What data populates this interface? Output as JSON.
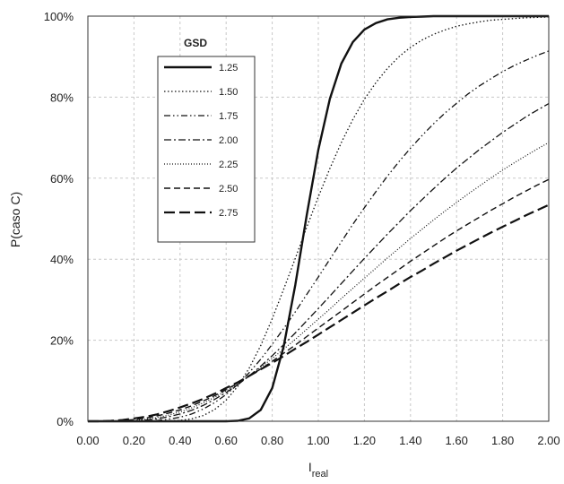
{
  "chart_data": {
    "type": "line",
    "title": "",
    "xlabel_main": "I",
    "xlabel_sub": "real",
    "ylabel": "P(caso C)",
    "xlim": [
      0,
      2
    ],
    "ylim": [
      0,
      100
    ],
    "x_ticks": [
      0,
      0.2,
      0.4,
      0.6,
      0.8,
      1.0,
      1.2,
      1.4,
      1.6,
      1.8,
      2.0
    ],
    "x_tick_labels": [
      "0.00",
      "0.20",
      "0.40",
      "0.60",
      "0.80",
      "1.00",
      "1.20",
      "1.40",
      "1.60",
      "1.80",
      "2.00"
    ],
    "y_ticks": [
      0,
      20,
      40,
      60,
      80,
      100
    ],
    "y_tick_labels": [
      "0%",
      "20%",
      "40%",
      "60%",
      "80%",
      "100%"
    ],
    "grid": true,
    "legend": {
      "title": "GSD",
      "placement": "top-left",
      "entries": [
        "1.25",
        "1.50",
        "1.75",
        "2.00",
        "2.25",
        "2.50",
        "2.75"
      ]
    },
    "x": [
      0.05,
      0.1,
      0.15,
      0.2,
      0.25,
      0.3,
      0.35,
      0.4,
      0.45,
      0.5,
      0.55,
      0.6,
      0.65,
      0.7,
      0.75,
      0.8,
      0.85,
      0.9,
      0.95,
      1.0,
      1.05,
      1.1,
      1.15,
      1.2,
      1.25,
      1.3,
      1.35,
      1.4,
      1.45,
      1.5,
      1.55,
      1.6,
      1.65,
      1.7,
      1.75,
      1.8,
      1.85,
      1.9,
      1.95,
      2.0
    ],
    "series": [
      {
        "name": "1.25",
        "style": "solid-thick",
        "values": [
          0,
          0,
          0,
          0,
          0,
          0,
          0,
          0,
          0,
          0,
          0,
          0,
          0.1,
          0.7,
          2.8,
          8.2,
          18.5,
          33.6,
          50.9,
          67.0,
          79.6,
          88.3,
          93.6,
          96.7,
          98.3,
          99.2,
          99.6,
          99.8,
          99.9,
          100,
          100,
          100,
          100,
          100,
          100,
          100,
          100,
          100,
          100,
          100
        ]
      },
      {
        "name": "1.50",
        "style": "dotted",
        "values": [
          0,
          0,
          0,
          0,
          0,
          0,
          0.1,
          0.2,
          0.6,
          1.4,
          2.9,
          5.2,
          8.6,
          13.1,
          18.7,
          25.3,
          32.6,
          40.2,
          47.9,
          55.4,
          62.4,
          68.8,
          74.5,
          79.5,
          83.6,
          87.1,
          90.0,
          92.3,
          94.1,
          95.5,
          96.6,
          97.5,
          98.1,
          98.6,
          99.0,
          99.2,
          99.4,
          99.6,
          99.7,
          99.8
        ]
      },
      {
        "name": "1.75",
        "style": "dash-dot-dot",
        "values": [
          0,
          0,
          0,
          0,
          0.1,
          0.2,
          0.5,
          1.0,
          1.8,
          3.0,
          4.6,
          6.6,
          9.1,
          12.0,
          15.3,
          19.0,
          22.9,
          27.0,
          31.3,
          35.6,
          40.0,
          44.3,
          48.6,
          52.7,
          56.7,
          60.5,
          64.1,
          67.4,
          70.5,
          73.4,
          76.1,
          78.5,
          80.8,
          82.8,
          84.6,
          86.3,
          87.8,
          89.1,
          90.3,
          91.4
        ]
      },
      {
        "name": "2.00",
        "style": "dash-dot",
        "values": [
          0,
          0,
          0,
          0.1,
          0.3,
          0.6,
          1.1,
          1.8,
          2.7,
          3.9,
          5.4,
          7.1,
          9.0,
          11.2,
          13.6,
          16.2,
          18.9,
          21.8,
          24.8,
          27.8,
          30.9,
          34.0,
          37.1,
          40.2,
          43.2,
          46.2,
          49.1,
          52.0,
          54.7,
          57.4,
          60.0,
          62.5,
          64.8,
          67.1,
          69.2,
          71.3,
          73.2,
          75.1,
          76.8,
          78.4
        ]
      },
      {
        "name": "2.25",
        "style": "dotted-fine",
        "values": [
          0,
          0,
          0.1,
          0.2,
          0.5,
          0.9,
          1.5,
          2.3,
          3.3,
          4.5,
          5.9,
          7.5,
          9.3,
          11.2,
          13.3,
          15.5,
          17.8,
          20.2,
          22.7,
          25.2,
          27.7,
          30.3,
          32.8,
          35.3,
          37.8,
          40.3,
          42.7,
          45.1,
          47.4,
          49.7,
          51.9,
          54.0,
          56.1,
          58.1,
          60.1,
          62.0,
          63.8,
          65.5,
          67.2,
          68.8
        ]
      },
      {
        "name": "2.50",
        "style": "dashed-short",
        "values": [
          0,
          0.1,
          0.2,
          0.4,
          0.8,
          1.3,
          2.0,
          2.8,
          3.8,
          5.0,
          6.3,
          7.8,
          9.4,
          11.1,
          12.9,
          14.8,
          16.8,
          18.8,
          20.9,
          23.0,
          25.1,
          27.2,
          29.3,
          31.4,
          33.5,
          35.5,
          37.5,
          39.5,
          41.4,
          43.3,
          45.2,
          47.0,
          48.7,
          50.4,
          52.1,
          53.7,
          55.3,
          56.8,
          58.3,
          59.7
        ]
      },
      {
        "name": "2.75",
        "style": "dashed-long-thick",
        "values": [
          0,
          0.1,
          0.3,
          0.7,
          1.1,
          1.7,
          2.5,
          3.4,
          4.4,
          5.5,
          6.8,
          8.2,
          9.6,
          11.2,
          12.8,
          14.4,
          16.1,
          17.9,
          19.6,
          21.4,
          23.2,
          25.0,
          26.8,
          28.6,
          30.4,
          32.1,
          33.9,
          35.6,
          37.2,
          38.9,
          40.5,
          42.1,
          43.6,
          45.1,
          46.6,
          48.0,
          49.4,
          50.8,
          52.1,
          53.4
        ]
      }
    ]
  }
}
